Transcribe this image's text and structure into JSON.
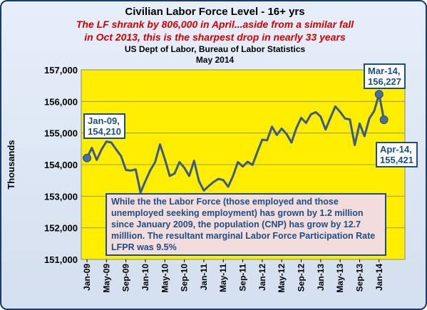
{
  "titles": {
    "line1": "Civilian Labor Force Level - 16+ yrs",
    "line2": "The LF shrank by 806,000 in April...aside from a similar fall",
    "line3": "in Oct 2013, this is the sharpest drop in nearly 33 years",
    "line4": "US Dept of Labor, Bureau of Labor Statistics",
    "line5": "May 2014"
  },
  "callouts": {
    "jan09": {
      "date": "Jan-09,",
      "value": "154,210"
    },
    "mar14": {
      "date": "Mar-14,",
      "value": "156,227"
    },
    "apr14": {
      "date": "Apr-14,",
      "value": "155,421"
    }
  },
  "note": "While the the Labor  Force (those employed and those unemployed seeking employment) has grown by 1.2 million since January  2009, the  population (CNP) has grow by 12.7 milllion.  The resultant  marginal Labor Force  Participation Rate LFPR was 9.5%",
  "colors": {
    "plot_background": "#ffee00",
    "line": "#3a5a8a",
    "callout": "#1a4f8a",
    "subtitle": "#d40000"
  },
  "chart_data": {
    "type": "line",
    "ylabel": "Thousands",
    "xlabel": "",
    "ylim": [
      151000,
      157000
    ],
    "yticks": [
      151000,
      152000,
      153000,
      154000,
      155000,
      156000,
      157000
    ],
    "ytick_labels": [
      "151,000",
      "152,000",
      "153,000",
      "154,000",
      "155,000",
      "156,000",
      "157,000"
    ],
    "xtick_labels": [
      "Jan-09",
      "May-09",
      "Sep-09",
      "Jan-10",
      "May-10",
      "Sep-10",
      "Jan-11",
      "May-11",
      "Sep-11",
      "Jan-12",
      "May-12",
      "Sep-12",
      "Jan-13",
      "May-13",
      "Sep-13",
      "Jan-14"
    ],
    "x_start": "Jan-09",
    "x_end": "Apr-14",
    "grid": "horizontal",
    "series": [
      {
        "values": [
          154210,
          154530,
          154150,
          154480,
          154730,
          154700,
          154480,
          154270,
          153830,
          153810,
          153850,
          153120,
          153480,
          153820,
          154080,
          154640,
          154170,
          153640,
          153720,
          154080,
          153900,
          153640,
          154120,
          153480,
          153180,
          153320,
          153450,
          153550,
          153510,
          153300,
          153640,
          154080,
          153940,
          154090,
          153990,
          154400,
          154790,
          154770,
          155200,
          154940,
          155140,
          154970,
          154700,
          155150,
          155480,
          155320,
          155590,
          155660,
          155520,
          155110,
          155480,
          155840,
          155670,
          155460,
          155430,
          154620,
          155300,
          154900,
          155460,
          155700,
          156227,
          155421
        ]
      }
    ]
  }
}
